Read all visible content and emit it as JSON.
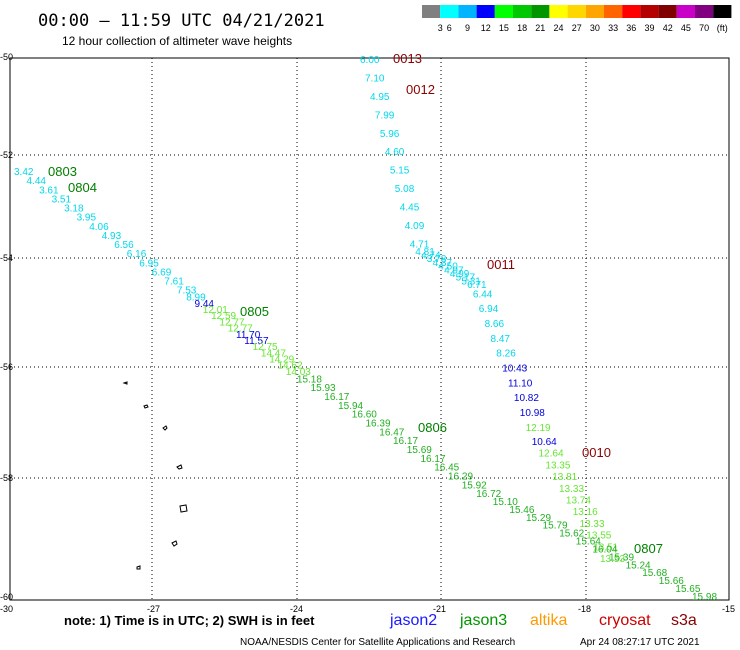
{
  "header": {
    "title": "00:00 – 11:59 UTC 04/21/2021",
    "subtitle": "12 hour collection of altimeter wave heights"
  },
  "legend": {
    "labels": [
      "3",
      "6",
      "9",
      "12",
      "15",
      "18",
      "21",
      "24",
      "27",
      "30",
      "33",
      "36",
      "39",
      "42",
      "45",
      "70",
      "(ft)"
    ],
    "colors": [
      "#808080",
      "#00ffff",
      "#00b4ff",
      "#0000ff",
      "#00ff00",
      "#00c800",
      "#009600",
      "#ffff00",
      "#ffd700",
      "#ffa500",
      "#ff6400",
      "#ff0000",
      "#b40000",
      "#800000",
      "#c800c8",
      "#800080",
      "#000000"
    ]
  },
  "axes": {
    "lat_labels": [
      "-50",
      "-52",
      "-54",
      "-56",
      "-58",
      "-60"
    ],
    "lon_labels": [
      "-30",
      "-27",
      "-24",
      "-21",
      "-18",
      "-15"
    ]
  },
  "track_labels": [
    {
      "text": "0013",
      "color": "#8b0000"
    },
    {
      "text": "0012",
      "color": "#8b0000"
    },
    {
      "text": "0011",
      "color": "#8b0000"
    },
    {
      "text": "0010",
      "color": "#8b0000"
    },
    {
      "text": "0803",
      "color": "#008000"
    },
    {
      "text": "0804",
      "color": "#008000"
    },
    {
      "text": "0805",
      "color": "#008000"
    },
    {
      "text": "0806",
      "color": "#008000"
    },
    {
      "text": "0807",
      "color": "#008000"
    }
  ],
  "track_a_values": [
    "6.00",
    "7.10",
    "4.95",
    "7.99",
    "5.96",
    "4.60",
    "5.15",
    "5.08",
    "4.45",
    "4.09",
    "4.71",
    "4.81",
    "4.74",
    "3.78",
    "4.37",
    "4.50",
    "4.97",
    "4.99",
    "5.17",
    "5.31",
    "6.71",
    "6.44",
    "6.94",
    "8.66",
    "8.47",
    "8.26",
    "10.43",
    "11.10",
    "10.82",
    "10.98",
    "12.19",
    "10.64",
    "12.64",
    "13.35",
    "13.81",
    "13.33",
    "13.74",
    "13.16",
    "13.33",
    "13.55",
    "13.51",
    "13.53"
  ],
  "track_b_values": [
    "3.42",
    "4.44",
    "3.61",
    "3.51",
    "3.18",
    "3.95",
    "4.06",
    "4.93",
    "6.56",
    "6.16",
    "6.95",
    "6.69",
    "7.61",
    "7.53",
    "8.99",
    "9.44",
    "12.01",
    "12.59",
    "12.77",
    "12.77",
    "11.70",
    "11.57",
    "12.75",
    "14.47",
    "14.29",
    "14.62",
    "14.03",
    "15.18",
    "15.93",
    "16.17",
    "15.94",
    "16.60",
    "16.39",
    "16.47",
    "16.17",
    "15.69",
    "16.17",
    "16.45",
    "16.29",
    "15.92",
    "16.72",
    "15.10",
    "15.46",
    "15.29",
    "15.79",
    "15.62",
    "15.64",
    "16.04",
    "15.39",
    "15.24",
    "15.68",
    "15.66",
    "15.65",
    "15.98"
  ],
  "footer": {
    "note": "note: 1) Time is in UTC; 2) SWH is in feet",
    "satellites": [
      {
        "name": "jason2",
        "color": "#1a1aff"
      },
      {
        "name": "jason3",
        "color": "#009600"
      },
      {
        "name": "altika",
        "color": "#ff9900"
      },
      {
        "name": "cryosat",
        "color": "#cc0000"
      },
      {
        "name": "s3a",
        "color": "#880000"
      }
    ],
    "credit": "NOAA/NESDIS Center for Satellite Applications and Research",
    "timestamp": "Apr 24 08:27:17 UTC 2021"
  }
}
